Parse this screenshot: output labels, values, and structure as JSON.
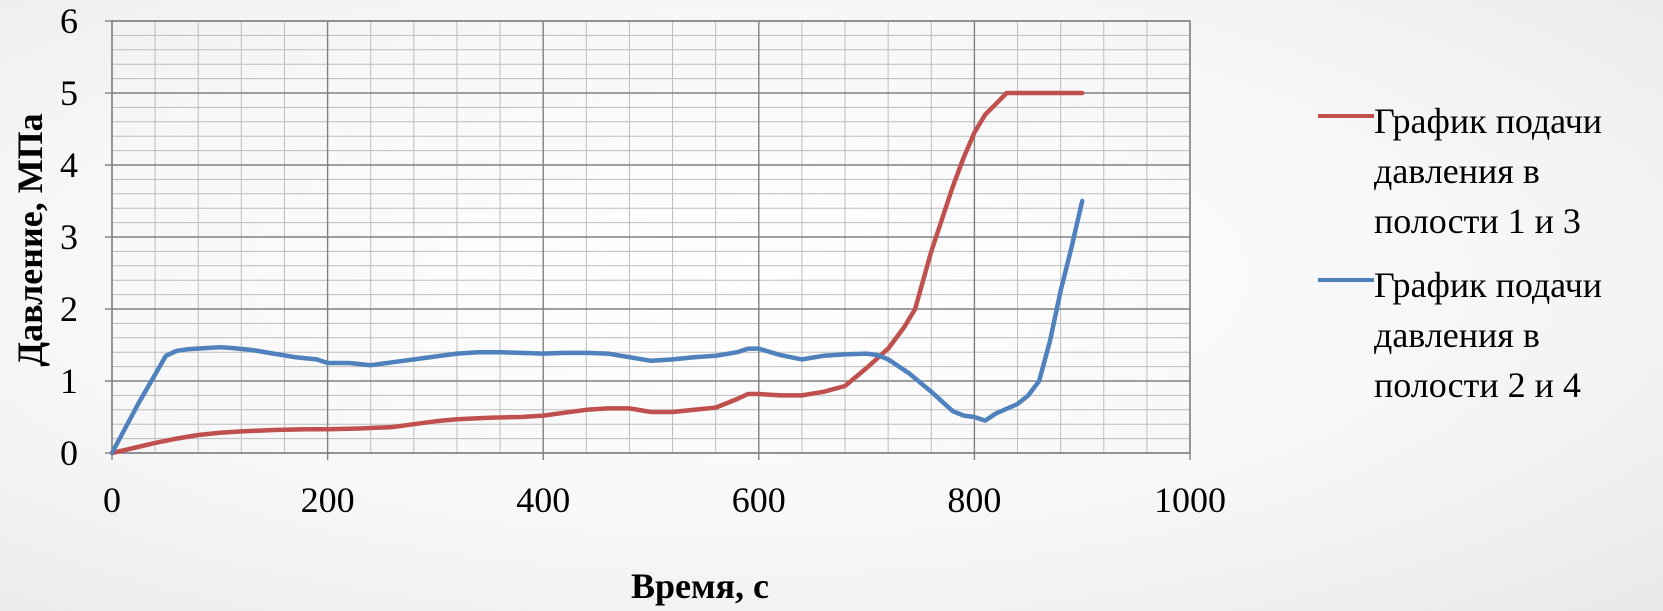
{
  "chart_data": {
    "type": "line",
    "xlabel": "Время, с",
    "ylabel": "Давление, МПа",
    "xlim": [
      0,
      1000
    ],
    "ylim": [
      0,
      6
    ],
    "x_major_step": 200,
    "x_minor_step": 40,
    "y_major_step": 1,
    "y_minor_step": 0.2,
    "grid": true,
    "legend_position": "right",
    "x_ticks": [
      "0",
      "200",
      "400",
      "600",
      "800",
      "1000"
    ],
    "y_ticks": [
      "0",
      "1",
      "2",
      "3",
      "4",
      "5",
      "6"
    ],
    "series": [
      {
        "name": "График подачи давления в полости 1 и 3",
        "color": "#c0504d",
        "x": [
          0,
          20,
          40,
          60,
          80,
          100,
          120,
          150,
          180,
          200,
          230,
          260,
          280,
          300,
          320,
          350,
          380,
          400,
          420,
          440,
          460,
          480,
          500,
          520,
          540,
          560,
          580,
          590,
          600,
          620,
          640,
          660,
          680,
          700,
          720,
          735,
          745,
          760,
          780,
          790,
          800,
          810,
          820,
          830,
          850,
          870,
          900
        ],
        "y": [
          0,
          0.07,
          0.14,
          0.2,
          0.25,
          0.28,
          0.3,
          0.32,
          0.33,
          0.33,
          0.34,
          0.36,
          0.4,
          0.44,
          0.47,
          0.49,
          0.5,
          0.52,
          0.56,
          0.6,
          0.62,
          0.62,
          0.57,
          0.57,
          0.6,
          0.63,
          0.75,
          0.82,
          0.82,
          0.8,
          0.8,
          0.85,
          0.93,
          1.18,
          1.45,
          1.75,
          2.0,
          2.8,
          3.7,
          4.1,
          4.45,
          4.7,
          4.85,
          5.0,
          5.0,
          5.0,
          5.0
        ]
      },
      {
        "name": "График подачи давления в полости 2 и 4",
        "color": "#4f81bd",
        "x": [
          0,
          25,
          50,
          60,
          70,
          90,
          100,
          110,
          130,
          150,
          170,
          190,
          200,
          220,
          240,
          260,
          280,
          300,
          320,
          340,
          360,
          380,
          400,
          420,
          440,
          460,
          480,
          500,
          520,
          540,
          560,
          580,
          590,
          600,
          620,
          640,
          660,
          680,
          700,
          710,
          720,
          740,
          760,
          780,
          790,
          800,
          810,
          820,
          840,
          850,
          860,
          870,
          880,
          890,
          900
        ],
        "y": [
          0,
          0.7,
          1.35,
          1.42,
          1.44,
          1.46,
          1.47,
          1.46,
          1.43,
          1.38,
          1.33,
          1.3,
          1.25,
          1.25,
          1.22,
          1.26,
          1.3,
          1.34,
          1.38,
          1.4,
          1.4,
          1.39,
          1.38,
          1.39,
          1.39,
          1.38,
          1.33,
          1.28,
          1.3,
          1.33,
          1.35,
          1.4,
          1.45,
          1.45,
          1.36,
          1.3,
          1.35,
          1.37,
          1.38,
          1.36,
          1.3,
          1.1,
          0.85,
          0.58,
          0.52,
          0.5,
          0.45,
          0.55,
          0.68,
          0.8,
          1.0,
          1.55,
          2.25,
          2.85,
          3.5
        ]
      }
    ]
  }
}
